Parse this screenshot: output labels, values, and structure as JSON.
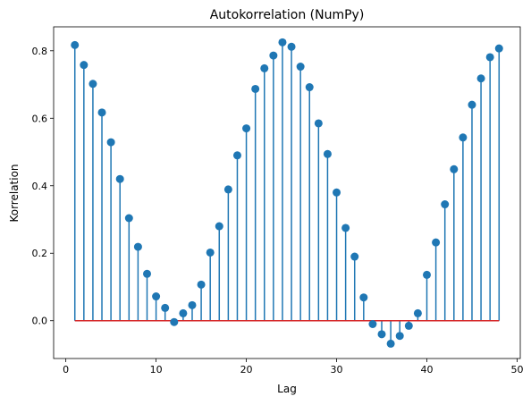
{
  "chart_data": {
    "type": "stem",
    "title": "Autokorrelation (NumPy)",
    "xlabel": "Lag",
    "ylabel": "Korrelation",
    "xlim": [
      -1.35,
      50.35
    ],
    "ylim": [
      -0.112,
      0.871
    ],
    "xticks": [
      0,
      10,
      20,
      30,
      40,
      50
    ],
    "yticks": [
      0.0,
      0.2,
      0.4,
      0.6,
      0.8
    ],
    "xtick_labels": [
      "0",
      "10",
      "20",
      "30",
      "40",
      "50"
    ],
    "ytick_labels": [
      "0.0",
      "0.2",
      "0.4",
      "0.6",
      "0.8"
    ],
    "grid": false,
    "legend": "none",
    "baseline": 0,
    "colors": {
      "stem": "#1f77b4",
      "marker": "#1f77b4",
      "baseline": "#d62728",
      "axis": "#000000"
    },
    "x": [
      1,
      2,
      3,
      4,
      5,
      6,
      7,
      8,
      9,
      10,
      11,
      12,
      13,
      14,
      15,
      16,
      17,
      18,
      19,
      20,
      21,
      22,
      23,
      24,
      25,
      26,
      27,
      28,
      29,
      30,
      31,
      32,
      33,
      34,
      35,
      36,
      37,
      38,
      39,
      40,
      41,
      42,
      43,
      44,
      45,
      46,
      47,
      48
    ],
    "values": [
      0.817,
      0.758,
      0.702,
      0.617,
      0.529,
      0.42,
      0.304,
      0.219,
      0.139,
      0.072,
      0.038,
      -0.004,
      0.022,
      0.046,
      0.107,
      0.202,
      0.28,
      0.389,
      0.49,
      0.57,
      0.687,
      0.748,
      0.786,
      0.825,
      0.812,
      0.753,
      0.692,
      0.585,
      0.494,
      0.38,
      0.275,
      0.19,
      0.069,
      -0.01,
      -0.04,
      -0.068,
      -0.045,
      -0.015,
      0.022,
      0.136,
      0.232,
      0.345,
      0.449,
      0.543,
      0.64,
      0.718,
      0.781,
      0.807
    ]
  }
}
